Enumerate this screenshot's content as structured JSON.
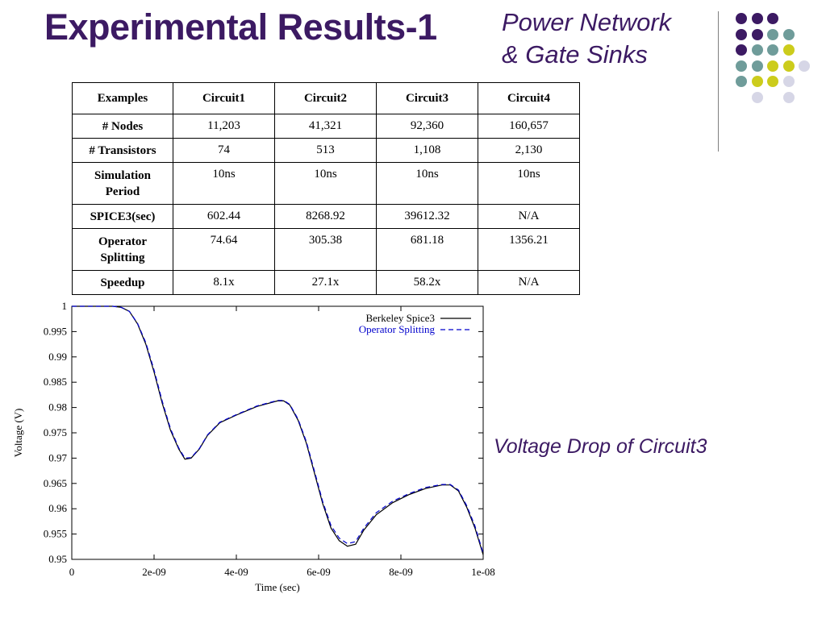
{
  "slide": {
    "title": "Experimental Results-1",
    "subtitle_line1": "Power Network",
    "subtitle_line2": "& Gate Sinks",
    "caption": "Voltage Drop of Circuit3"
  },
  "colors": {
    "title": "#3c1a63",
    "dot_palette": [
      "#3c1a63",
      "#6f9c9a",
      "#cccc1c",
      "#d6d6e6"
    ],
    "series_spice": "#000000",
    "series_opsplit": "#0000cc"
  },
  "table": {
    "headers": [
      "Examples",
      "Circuit1",
      "Circuit2",
      "Circuit3",
      "Circuit4"
    ],
    "rows": [
      {
        "label": "# Nodes",
        "values": [
          "11,203",
          "41,321",
          "92,360",
          "160,657"
        ]
      },
      {
        "label": "# Transistors",
        "values": [
          "74",
          "513",
          "1,108",
          "2,130"
        ]
      },
      {
        "label": "Simulation Period",
        "values": [
          "10ns",
          "10ns",
          "10ns",
          "10ns"
        ]
      },
      {
        "label": "SPICE3(sec)",
        "values": [
          "602.44",
          "8268.92",
          "39612.32",
          "N/A"
        ]
      },
      {
        "label": "Operator Splitting",
        "values": [
          "74.64",
          "305.38",
          "681.18",
          "1356.21"
        ]
      },
      {
        "label": "Speedup",
        "values": [
          "8.1x",
          "27.1x",
          "58.2x",
          "N/A"
        ]
      }
    ]
  },
  "chart_data": {
    "type": "line",
    "title": "",
    "xlabel": "Time (sec)",
    "ylabel": "Voltage (V)",
    "xlim": [
      0,
      1e-08
    ],
    "ylim": [
      0.95,
      1.0
    ],
    "xticks": [
      0,
      2e-09,
      4e-09,
      6e-09,
      8e-09,
      1e-08
    ],
    "xtick_labels": [
      "0",
      "2e-09",
      "4e-09",
      "6e-09",
      "8e-09",
      "1e-08"
    ],
    "yticks": [
      0.95,
      0.955,
      0.96,
      0.965,
      0.97,
      0.975,
      0.98,
      0.985,
      0.99,
      0.995,
      1.0
    ],
    "ytick_labels": [
      "0.95",
      "0.955",
      "0.96",
      "0.965",
      "0.97",
      "0.975",
      "0.98",
      "0.985",
      "0.99",
      "0.995",
      "1"
    ],
    "legend_position": "top-right",
    "grid": false,
    "series": [
      {
        "name": "Berkeley Spice3",
        "style": "solid",
        "x": [
          0,
          5e-10,
          1e-09,
          1.2e-09,
          1.4e-09,
          1.6e-09,
          1.8e-09,
          2e-09,
          2.2e-09,
          2.4e-09,
          2.6e-09,
          2.75e-09,
          2.9e-09,
          3.1e-09,
          3.3e-09,
          3.6e-09,
          4e-09,
          4.5e-09,
          5e-09,
          5.15e-09,
          5.3e-09,
          5.5e-09,
          5.7e-09,
          5.9e-09,
          6.1e-09,
          6.3e-09,
          6.5e-09,
          6.7e-09,
          6.9e-09,
          7.1e-09,
          7.4e-09,
          7.8e-09,
          8.2e-09,
          8.6e-09,
          9e-09,
          9.2e-09,
          9.4e-09,
          9.6e-09,
          9.8e-09,
          1e-08
        ],
        "y": [
          1.0,
          1.0,
          1.0,
          0.9998,
          0.999,
          0.9965,
          0.9925,
          0.987,
          0.9808,
          0.9755,
          0.9718,
          0.9698,
          0.97,
          0.9718,
          0.9745,
          0.977,
          0.9785,
          0.9802,
          0.9813,
          0.9813,
          0.9805,
          0.9775,
          0.973,
          0.967,
          0.961,
          0.9562,
          0.9537,
          0.9526,
          0.953,
          0.9558,
          0.9588,
          0.9612,
          0.9628,
          0.964,
          0.9647,
          0.9647,
          0.9635,
          0.9603,
          0.9562,
          0.9509
        ]
      },
      {
        "name": "Operator Splitting",
        "style": "dashed",
        "x": [
          0,
          5e-10,
          1e-09,
          1.2e-09,
          1.4e-09,
          1.6e-09,
          1.8e-09,
          2e-09,
          2.2e-09,
          2.4e-09,
          2.6e-09,
          2.75e-09,
          2.9e-09,
          3.1e-09,
          3.3e-09,
          3.6e-09,
          4e-09,
          4.5e-09,
          5e-09,
          5.15e-09,
          5.3e-09,
          5.5e-09,
          5.7e-09,
          5.9e-09,
          6.1e-09,
          6.3e-09,
          6.5e-09,
          6.7e-09,
          6.9e-09,
          7.1e-09,
          7.4e-09,
          7.8e-09,
          8.2e-09,
          8.6e-09,
          9e-09,
          9.2e-09,
          9.4e-09,
          9.6e-09,
          9.8e-09,
          1e-08
        ],
        "y": [
          1.0,
          1.0,
          1.0,
          0.9998,
          0.999,
          0.9966,
          0.9928,
          0.9874,
          0.9812,
          0.9758,
          0.972,
          0.97,
          0.9701,
          0.9719,
          0.9746,
          0.9771,
          0.9786,
          0.9803,
          0.9814,
          0.9814,
          0.9806,
          0.9777,
          0.9733,
          0.9674,
          0.9614,
          0.9567,
          0.9542,
          0.9531,
          0.9535,
          0.9562,
          0.9592,
          0.9615,
          0.963,
          0.9642,
          0.9648,
          0.9648,
          0.9637,
          0.9606,
          0.9566,
          0.9512
        ]
      }
    ]
  }
}
